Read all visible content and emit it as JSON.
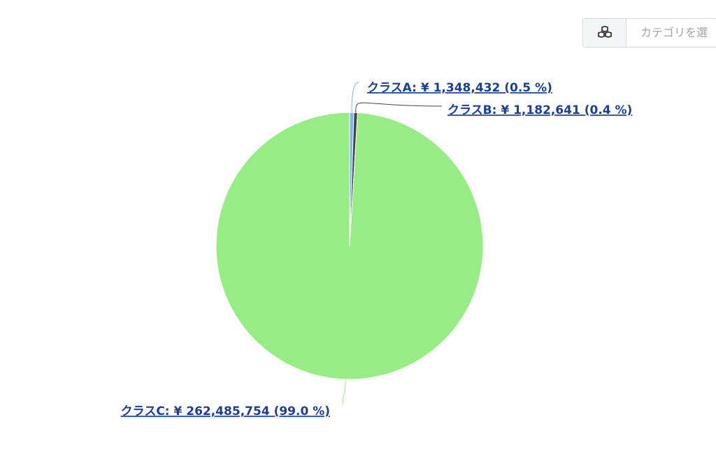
{
  "chart_data": {
    "type": "pie",
    "values": [
      1348432,
      1182641,
      262485754
    ],
    "value_labels": [
      "クラスA: ¥ 1,348,432 (0.5 %)",
      "クラスB: ¥ 1,182,641 (0.4 %)",
      "クラスC: ¥ 262,485,754 (99.0 %)"
    ],
    "colors": [
      "#7cb5ec",
      "#434348",
      "#98ec86"
    ]
  },
  "ui": {
    "category_placeholder": "カテゴリを選"
  }
}
